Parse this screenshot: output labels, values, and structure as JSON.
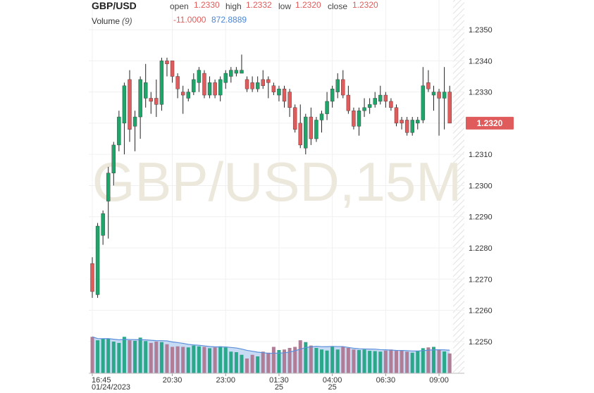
{
  "chart_data": {
    "type": "candlestick",
    "title": "GBP/USD",
    "legend": {
      "open_label": "open",
      "open": "1.2330",
      "high_label": "high",
      "high": "1.2332",
      "low_label": "low",
      "low": "1.2320",
      "close_label": "close",
      "close": "1.2320",
      "volume_label": "Volume",
      "volume_period": "(9)",
      "volume_change": "-11.0000",
      "volume_ma": "872.8889"
    },
    "watermark": "GBP/USD,15M",
    "last_price_label": "1.2320",
    "ma_period": 9,
    "categories": [
      "16:45",
      null,
      null,
      null,
      null,
      null,
      null,
      null,
      null,
      null,
      null,
      null,
      null,
      null,
      null,
      "20:30",
      null,
      null,
      null,
      null,
      null,
      null,
      null,
      null,
      null,
      "23:00",
      null,
      null,
      null,
      null,
      null,
      null,
      null,
      null,
      null,
      "01:30",
      null,
      null,
      null,
      null,
      null,
      null,
      null,
      null,
      null,
      "04:00",
      null,
      null,
      null,
      null,
      null,
      null,
      null,
      null,
      null,
      "06:30",
      null,
      null,
      null,
      null,
      null,
      null,
      null,
      null,
      null,
      "09:00",
      null,
      null
    ],
    "date_labels": [
      "01/24/2023",
      null,
      null,
      null,
      null,
      null,
      null,
      null,
      null,
      null,
      null,
      null,
      null,
      null,
      null,
      null,
      null,
      null,
      null,
      null,
      null,
      null,
      null,
      null,
      null,
      null,
      null,
      null,
      null,
      null,
      null,
      null,
      null,
      null,
      null,
      "25",
      null,
      null,
      null,
      null,
      null,
      null,
      null,
      null,
      null,
      "25",
      null,
      null,
      null,
      null,
      null,
      null,
      null,
      null,
      null,
      null,
      null,
      null,
      null,
      null,
      null,
      null,
      null,
      null,
      null,
      null,
      null,
      null
    ],
    "open": [
      1.2275,
      1.2265,
      1.2284,
      1.2295,
      1.2304,
      1.2313,
      1.232,
      1.2334,
      1.2319,
      1.2322,
      1.2328,
      1.2328,
      1.2328,
      1.2326,
      1.234,
      1.234,
      1.2335,
      1.233,
      1.2328,
      1.233,
      1.2333,
      1.2336,
      1.2329,
      1.2333,
      1.2329,
      1.2333,
      1.2335,
      1.2336,
      1.2336,
      1.2334,
      1.2333,
      1.2331,
      1.2334,
      1.2334,
      1.2332,
      1.2329,
      1.2331,
      1.233,
      1.2325,
      1.232,
      1.2312,
      1.2322,
      1.2315,
      1.2321,
      1.2323,
      1.2327,
      1.233,
      1.2334,
      1.2329,
      1.2324,
      1.2319,
      1.2324,
      1.2325,
      1.2326,
      1.2327,
      1.2329,
      1.2327,
      1.2325,
      1.2321,
      1.2321,
      1.2317,
      1.232,
      1.2321,
      1.2333,
      1.2329,
      1.233,
      1.2328,
      1.233
    ],
    "high": [
      1.2277,
      1.2288,
      1.2292,
      1.2306,
      1.2314,
      1.2324,
      1.2333,
      1.2337,
      1.2324,
      1.2335,
      1.2339,
      1.233,
      1.2334,
      1.2341,
      1.2341,
      1.234,
      1.2336,
      1.2332,
      1.2331,
      1.2336,
      1.2338,
      1.2337,
      1.2335,
      1.2334,
      1.2335,
      1.2337,
      1.2338,
      1.2338,
      1.2342,
      1.2335,
      1.2335,
      1.2335,
      1.2337,
      1.2335,
      1.2333,
      1.2332,
      1.2332,
      1.2331,
      1.2326,
      1.2326,
      1.2323,
      1.2325,
      1.2322,
      1.2324,
      1.233,
      1.2332,
      1.2336,
      1.2337,
      1.2332,
      1.2325,
      1.2325,
      1.2328,
      1.2328,
      1.233,
      1.2332,
      1.233,
      1.2328,
      1.2326,
      1.2322,
      1.2322,
      1.2322,
      1.2322,
      1.2338,
      1.2337,
      1.2332,
      1.2331,
      1.2338,
      1.2332
    ],
    "low": [
      1.2264,
      1.2264,
      1.2281,
      1.2283,
      1.23,
      1.2311,
      1.231,
      1.2314,
      1.2311,
      1.2315,
      1.2325,
      1.2323,
      1.2322,
      1.2324,
      1.2335,
      1.2333,
      1.2328,
      1.2323,
      1.2327,
      1.2329,
      1.233,
      1.2328,
      1.2328,
      1.2328,
      1.2327,
      1.2331,
      1.2333,
      1.2335,
      1.2336,
      1.233,
      1.233,
      1.233,
      1.2331,
      1.2328,
      1.2329,
      1.2327,
      1.2325,
      1.2322,
      1.2317,
      1.2312,
      1.231,
      1.2313,
      1.2314,
      1.2317,
      1.2321,
      1.2325,
      1.2328,
      1.2328,
      1.2323,
      1.2318,
      1.2316,
      1.2322,
      1.2323,
      1.2325,
      1.2326,
      1.2325,
      1.2324,
      1.2319,
      1.2318,
      1.2316,
      1.2316,
      1.2318,
      1.232,
      1.233,
      1.2324,
      1.2316,
      1.2318,
      1.232
    ],
    "close": [
      1.2266,
      1.2287,
      1.2291,
      1.2304,
      1.2313,
      1.2322,
      1.2332,
      1.2318,
      1.2322,
      1.2334,
      1.2333,
      1.2327,
      1.2326,
      1.234,
      1.2339,
      1.2335,
      1.2331,
      1.2329,
      1.233,
      1.2334,
      1.2337,
      1.2329,
      1.2333,
      1.2329,
      1.2334,
      1.2336,
      1.2337,
      1.2337,
      1.2337,
      1.2331,
      1.2331,
      1.2333,
      1.2332,
      1.2333,
      1.233,
      1.2331,
      1.2327,
      1.2325,
      1.2318,
      1.2313,
      1.2322,
      1.2315,
      1.2321,
      1.2323,
      1.2327,
      1.2331,
      1.2334,
      1.2329,
      1.2324,
      1.2319,
      1.2324,
      1.2325,
      1.2326,
      1.2328,
      1.2329,
      1.2327,
      1.2325,
      1.232,
      1.232,
      1.2317,
      1.2321,
      1.2321,
      1.2332,
      1.2331,
      1.233,
      1.2328,
      1.233,
      1.232
    ],
    "volumes": [
      1380,
      1250,
      1300,
      1320,
      1200,
      1150,
      1380,
      1250,
      1230,
      1350,
      1220,
      1150,
      1200,
      1180,
      1100,
      1000,
      1020,
      1000,
      980,
      1050,
      1020,
      1000,
      950,
      980,
      1020,
      980,
      820,
      800,
      700,
      560,
      700,
      640,
      820,
      780,
      1000,
      880,
      900,
      960,
      1000,
      1250,
      1180,
      1050,
      960,
      900,
      860,
      1000,
      900,
      1000,
      960,
      900,
      880,
      900,
      850,
      840,
      820,
      860,
      900,
      850,
      880,
      820,
      780,
      850,
      950,
      980,
      1000,
      900,
      826,
      750
    ],
    "volume_lim": [
      0,
      1600
    ],
    "up_color": "#1fa56a",
    "down_color": "#e05c5c",
    "volume_up_color": "#2ba889",
    "volume_down_color": "#b07d97",
    "ma_color": "#5b8fd9",
    "ma_fill": "#b5cff2",
    "ylim": [
      1.22398,
      1.23595
    ],
    "yticks": [
      {
        "value": 1.225,
        "label": "1.2250"
      },
      {
        "value": 1.226,
        "label": "1.2260"
      },
      {
        "value": 1.227,
        "label": "1.2270"
      },
      {
        "value": 1.228,
        "label": "1.2280"
      },
      {
        "value": 1.229,
        "label": "1.2290"
      },
      {
        "value": 1.23,
        "label": "1.2300"
      },
      {
        "value": 1.231,
        "label": "1.2310"
      },
      {
        "value": 1.232,
        "label": "1.2320"
      },
      {
        "value": 1.233,
        "label": "1.2330"
      },
      {
        "value": 1.234,
        "label": "1.2340"
      },
      {
        "value": 1.235,
        "label": "1.2350"
      }
    ],
    "grid": true
  }
}
